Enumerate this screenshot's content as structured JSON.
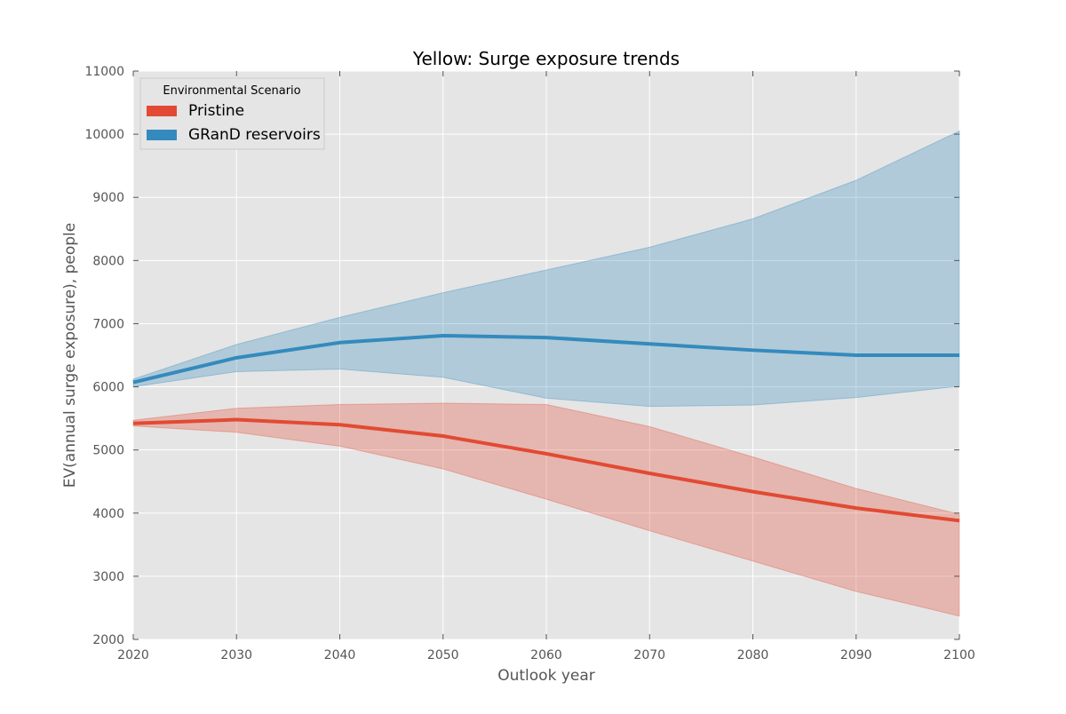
{
  "chart_data": {
    "type": "line",
    "title": "Yellow: Surge exposure trends",
    "xlabel": "Outlook year",
    "ylabel": "EV(annual surge exposure), people",
    "xlim": [
      2020,
      2100
    ],
    "ylim": [
      2000,
      11000
    ],
    "x_ticks": [
      "2020",
      "2030",
      "2040",
      "2050",
      "2060",
      "2070",
      "2080",
      "2090",
      "2100"
    ],
    "y_ticks": [
      "2000",
      "3000",
      "4000",
      "5000",
      "6000",
      "7000",
      "8000",
      "9000",
      "10000",
      "11000"
    ],
    "grid": true,
    "legend": {
      "title": "Environmental Scenario",
      "position": "upper-left"
    },
    "x": [
      2020,
      2030,
      2040,
      2050,
      2060,
      2070,
      2080,
      2090,
      2100
    ],
    "series": [
      {
        "name": "Pristine",
        "color": "#e24a33",
        "values": [
          5420,
          5480,
          5400,
          5220,
          4940,
          4630,
          4340,
          4080,
          3880
        ],
        "upper": [
          5470,
          5660,
          5720,
          5740,
          5720,
          5370,
          4890,
          4390,
          3980
        ],
        "lower": [
          5380,
          5280,
          5060,
          4700,
          4220,
          3720,
          3240,
          2760,
          2370
        ]
      },
      {
        "name": "GRanD reservoirs",
        "color": "#348abd",
        "values": [
          6070,
          6460,
          6700,
          6810,
          6780,
          6680,
          6580,
          6500,
          6500
        ],
        "upper": [
          6120,
          6670,
          7100,
          7490,
          7850,
          8210,
          8660,
          9270,
          10050
        ],
        "lower": [
          6000,
          6240,
          6280,
          6150,
          5820,
          5690,
          5710,
          5830,
          6010
        ]
      }
    ]
  }
}
